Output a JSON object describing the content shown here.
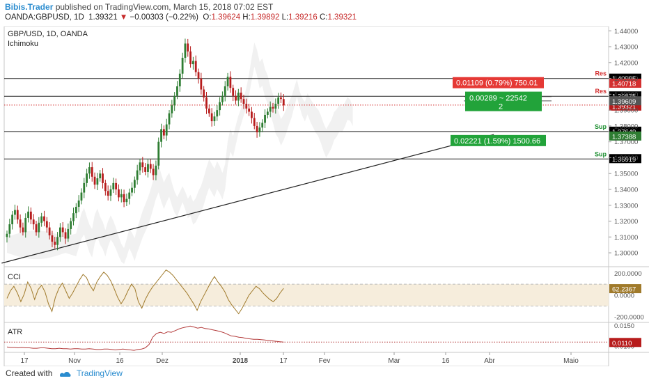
{
  "header": {
    "author": "Bibis.Trader",
    "published_text": "published on TradingView.com, March 15, 2018 07:02 EST",
    "symbol_line": "OANDA:GBPUSD, 1D",
    "last_price": "1.39321",
    "change": "−0.00303 (−0.22%)",
    "open_label": "O:",
    "open": "1.39624",
    "high_label": "H:",
    "high": "1.39892",
    "low_label": "L:",
    "low": "1.39216",
    "close_label": "C:",
    "close": "1.39321"
  },
  "footer": {
    "created_with": "Created with",
    "brand": "TradingView"
  },
  "colors": {
    "up": "#2e7d32",
    "down": "#b71c1c",
    "resistance_label": "#d32f2f",
    "support_label": "#1b8e2f",
    "cci_line": "#a07a2b",
    "atr_line": "#b33a3a"
  },
  "chart_data": [
    {
      "type": "candlestick",
      "title": "GBP/USD, 1D, OANDA",
      "subtitle": "Ichimoku",
      "x_tick_labels": [
        "17",
        "Nov",
        "16",
        "Dez",
        "2018",
        "17",
        "Fev",
        "Mar",
        "16",
        "Abr",
        "Maio"
      ],
      "ylim": [
        1.293,
        1.441
      ],
      "y_ticks": [
        1.3,
        1.31,
        1.32,
        1.33,
        1.34,
        1.35,
        1.36,
        1.37,
        1.38,
        1.39,
        1.4,
        1.41,
        1.42,
        1.43,
        1.44
      ],
      "y_tick_labels": [
        "1.30000",
        "1.31000",
        "1.32000",
        "1.33000",
        "1.34000",
        "1.35000",
        "1.36000",
        "1.37000",
        "1.38000",
        "1.39000",
        "1.40000",
        "1.41000",
        "1.42000",
        "1.43000",
        "1.44000"
      ],
      "grid": false,
      "close_path": [
        1.312,
        1.318,
        1.324,
        1.327,
        1.321,
        1.316,
        1.313,
        1.322,
        1.326,
        1.321,
        1.318,
        1.313,
        1.319,
        1.323,
        1.32,
        1.316,
        1.311,
        1.307,
        1.305,
        1.31,
        1.316,
        1.313,
        1.309,
        1.315,
        1.32,
        1.325,
        1.329,
        1.333,
        1.338,
        1.344,
        1.35,
        1.354,
        1.348,
        1.343,
        1.347,
        1.35,
        1.344,
        1.339,
        1.336,
        1.34,
        1.344,
        1.34,
        1.335,
        1.337,
        1.332,
        1.334,
        1.338,
        1.341,
        1.346,
        1.352,
        1.357,
        1.354,
        1.351,
        1.356,
        1.353,
        1.349,
        1.355,
        1.37,
        1.378,
        1.374,
        1.381,
        1.388,
        1.393,
        1.399,
        1.405,
        1.413,
        1.423,
        1.432,
        1.427,
        1.419,
        1.421,
        1.414,
        1.41,
        1.403,
        1.398,
        1.391,
        1.388,
        1.383,
        1.386,
        1.39,
        1.395,
        1.399,
        1.405,
        1.411,
        1.404,
        1.399,
        1.396,
        1.401,
        1.397,
        1.394,
        1.391,
        1.389,
        1.385,
        1.38,
        1.376,
        1.379,
        1.382,
        1.387,
        1.389,
        1.392,
        1.391,
        1.394,
        1.398,
        1.397,
        1.393
      ],
      "horizontal_levels": [
        {
          "price": 1.40995,
          "label": "1.40995",
          "tag": "Res"
        },
        {
          "price": 1.39875,
          "label": "1.39875",
          "tag": "Res"
        },
        {
          "price": 1.37649,
          "label": "1.37649",
          "tag": "Sup"
        },
        {
          "price": 1.35919,
          "label": "1.35919",
          "tag": "Sup"
        }
      ],
      "last_price_line": {
        "price": 1.39321,
        "label": "1.39321"
      },
      "axis_price_labels": [
        {
          "price": 1.40718,
          "label": "1.40718",
          "color": "#d32f2f"
        },
        {
          "price": 1.39609,
          "label": "1.39609",
          "color": "#555555"
        },
        {
          "price": 1.37388,
          "label": "1.37388",
          "color": "#2e7d32"
        }
      ],
      "trendline": {
        "from": {
          "bar": -2,
          "price": 1.2935
        },
        "to": {
          "bar": 183,
          "price": 1.3746
        }
      },
      "annotations": [
        {
          "text": "0.01109 (0.79%) 750.01",
          "color": "#e53935"
        },
        {
          "text": "0.00289 ~ 22542",
          "text2": "2",
          "color": "#22a33a"
        },
        {
          "text": "0.02221 (1.59%) 1500.66",
          "color": "#22a33a"
        }
      ]
    },
    {
      "type": "line",
      "title": "CCI",
      "ylim": [
        -250,
        260
      ],
      "y_tick_labels": [
        "200.0000",
        "0.0000",
        "-200.0000"
      ],
      "band": [
        -100,
        100
      ],
      "last_value_label": "62.2367",
      "values": [
        -30,
        40,
        80,
        20,
        -60,
        10,
        120,
        60,
        -40,
        50,
        90,
        30,
        -80,
        -150,
        -20,
        60,
        110,
        40,
        -30,
        20,
        80,
        140,
        190,
        160,
        90,
        40,
        120,
        170,
        210,
        180,
        130,
        60,
        -20,
        -80,
        -30,
        40,
        100,
        60,
        -60,
        -120,
        -40,
        20,
        70,
        110,
        150,
        190,
        230,
        210,
        180,
        140,
        100,
        60,
        20,
        -30,
        -80,
        -140,
        -60,
        0,
        60,
        120,
        170,
        120,
        80,
        30,
        -40,
        -90,
        -130,
        -170,
        -120,
        -60,
        0,
        40,
        80,
        60,
        20,
        -10,
        -40,
        -60,
        -30,
        20,
        62
      ]
    },
    {
      "type": "line",
      "title": "ATR",
      "y_tick_labels": [
        "0.0150",
        "0.0100"
      ],
      "ylim": [
        0.0085,
        0.0158
      ],
      "last_value_label": "0.0110",
      "values": [
        0.0098,
        0.0097,
        0.0097,
        0.0096,
        0.0097,
        0.0096,
        0.0096,
        0.0095,
        0.0095,
        0.0096,
        0.0096,
        0.0095,
        0.0094,
        0.0094,
        0.0095,
        0.0094,
        0.0094,
        0.0093,
        0.0094,
        0.0094,
        0.0093,
        0.0093,
        0.0094,
        0.0093,
        0.0092,
        0.0092,
        0.0093,
        0.0093,
        0.0092,
        0.0091,
        0.0092,
        0.0093,
        0.0092,
        0.0091,
        0.009,
        0.0092,
        0.0093,
        0.0096,
        0.0104,
        0.0122,
        0.0131,
        0.0134,
        0.0131,
        0.0135,
        0.0134,
        0.0138,
        0.0142,
        0.0145,
        0.0147,
        0.0149,
        0.0147,
        0.0144,
        0.0146,
        0.0143,
        0.0142,
        0.014,
        0.0138,
        0.0136,
        0.0133,
        0.0129,
        0.0125,
        0.0124,
        0.0122,
        0.0121,
        0.0119,
        0.0118,
        0.0117,
        0.0117,
        0.0116,
        0.0115,
        0.0114,
        0.0113,
        0.0112,
        0.0111,
        0.011
      ]
    }
  ]
}
